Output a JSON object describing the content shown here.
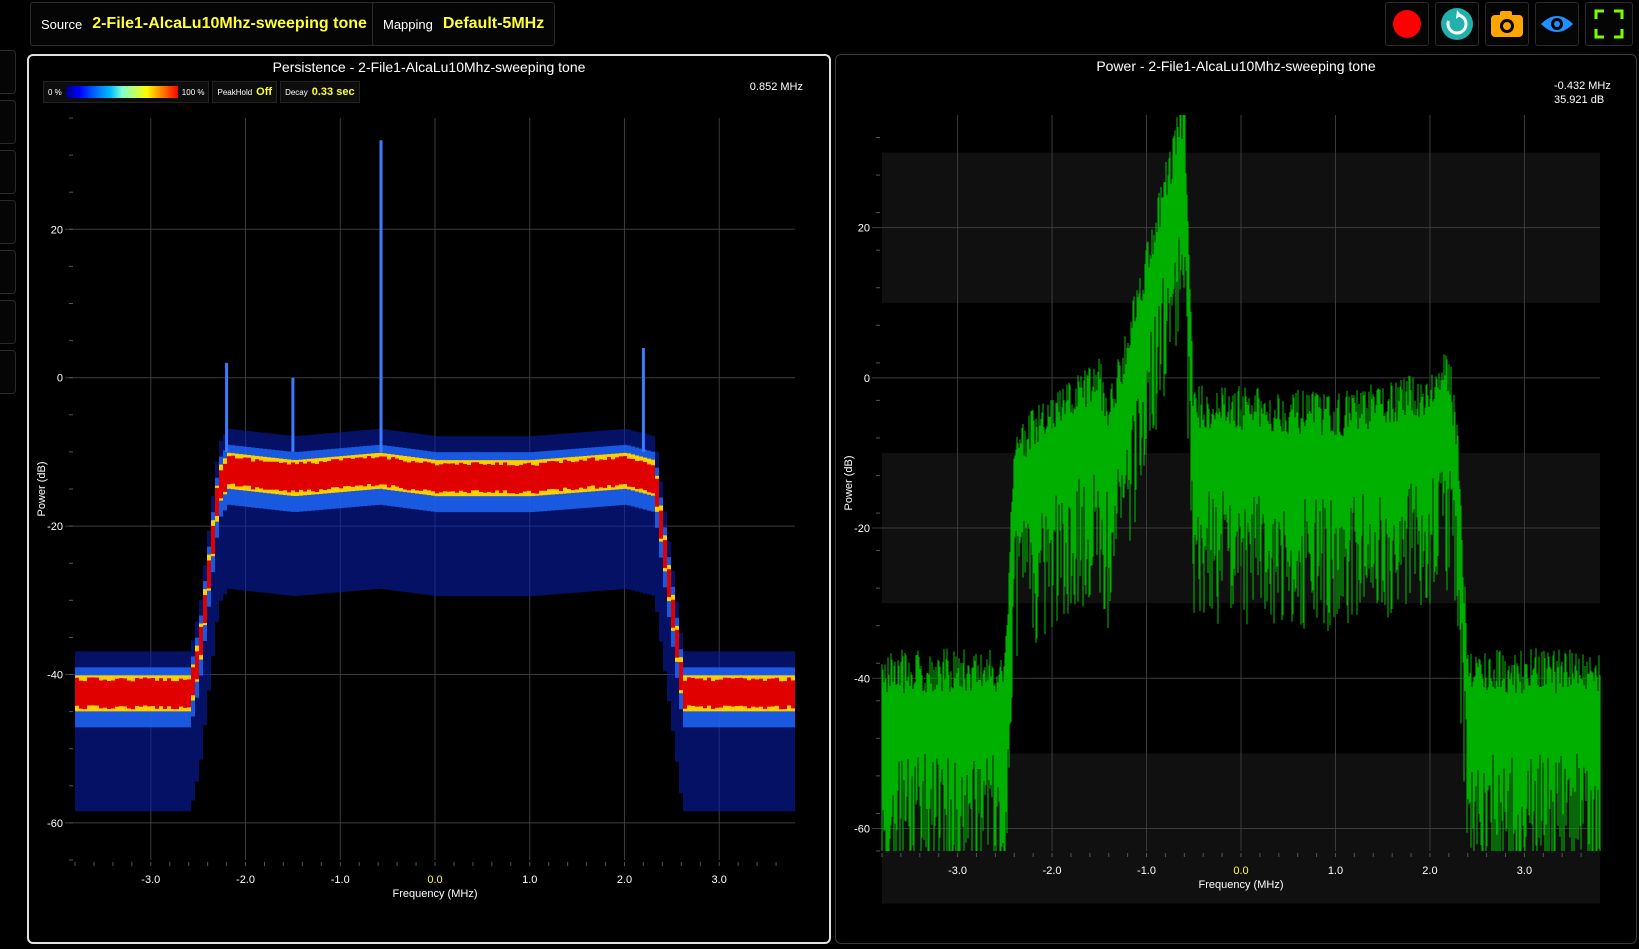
{
  "toolbar": {
    "source_label": "Source",
    "source_value": "2-File1-AlcaLu10Mhz-sweeping tone",
    "mapping_label": "Mapping",
    "mapping_value": "Default-5MHz"
  },
  "icons": {
    "record": "record-icon",
    "refresh": "refresh-icon",
    "camera": "camera-icon",
    "eye": "eye-icon",
    "fullscreen": "fullscreen-icon"
  },
  "colors": {
    "accent_yellow": "#ffff33",
    "record": "#ff0000",
    "refresh": "#20b2aa",
    "camera": "#ffa500",
    "eye": "#1e90ff",
    "fullscreen": "#7cfc00",
    "trace": "#00b000"
  },
  "persistence": {
    "title": "Persistence - 2-File1-AlcaLu10Mhz-sweeping tone",
    "readout": "0.852 MHz",
    "legend": {
      "min_label": "0 %",
      "max_label": "100 %",
      "peakhold_label": "PeakHold",
      "peakhold_value": "Off",
      "decay_label": "Decay",
      "decay_value": "0.33 sec"
    }
  },
  "power": {
    "title": "Power - 2-File1-AlcaLu10Mhz-sweeping tone",
    "readout_freq": "-0.432 MHz",
    "readout_db": "35.921 dB"
  },
  "chart_data": [
    {
      "type": "heatmap",
      "title": "Persistence - 2-File1-AlcaLu10Mhz-sweeping tone",
      "xlabel": "Frequency (MHz)",
      "ylabel": "Power (dB)",
      "xlim": [
        -3.8,
        3.8
      ],
      "ylim": [
        -65,
        35
      ],
      "xticks": [
        "-3.0",
        "-2.0",
        "-1.0",
        "0.0",
        "1.0",
        "2.0",
        "3.0"
      ],
      "yticks": [
        "20",
        "0",
        "-20",
        "-40",
        "-60"
      ],
      "grid": true,
      "series": [
        {
          "x": [
            -3.8,
            -2.6,
            -2.5,
            -2.3,
            -2.2,
            -1.5,
            -0.6,
            0.0,
            1.0,
            2.0,
            2.3,
            2.5,
            2.6,
            3.8
          ],
          "y": [
            -42,
            -42,
            -36,
            -14,
            -12,
            -13,
            -12,
            -13,
            -13,
            -12,
            -13,
            -32,
            -42,
            -42
          ]
        }
      ]
    },
    {
      "type": "line",
      "title": "Power - 2-File1-AlcaLu10Mhz-sweeping tone",
      "xlabel": "Frequency (MHz)",
      "ylabel": "Power (dB)",
      "xlim": [
        -3.8,
        3.8
      ],
      "ylim": [
        -63,
        35
      ],
      "xticks": [
        "-3.0",
        "-2.0",
        "-1.0",
        "0.0",
        "1.0",
        "2.0",
        "3.0"
      ],
      "yticks": [
        "20",
        "0",
        "-20",
        "-40",
        "-60"
      ],
      "grid": true,
      "series": [
        {
          "x": [
            -3.8,
            -2.5,
            -2.4,
            -2.0,
            -1.5,
            -1.4,
            -0.6,
            -0.5,
            0.0,
            1.0,
            2.0,
            2.2,
            2.3,
            2.4,
            3.8
          ],
          "y": [
            -42,
            -42,
            -12,
            -8,
            -3,
            -8,
            33,
            -7,
            -7,
            -8,
            -5,
            -2,
            -12,
            -42,
            -42
          ]
        }
      ]
    }
  ]
}
